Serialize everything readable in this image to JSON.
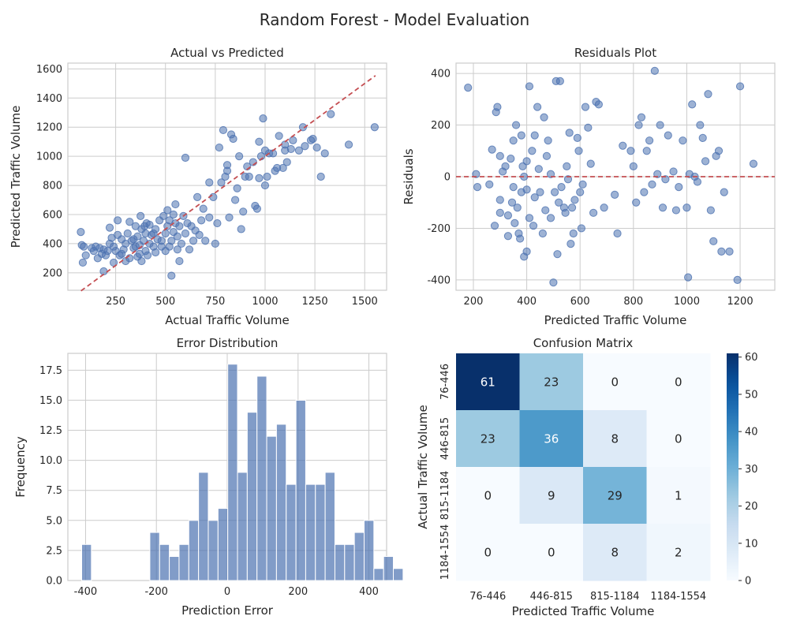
{
  "suptitle": "Random Forest - Model Evaluation",
  "colors": {
    "point": "#4c72b0",
    "ref_line": "#c44e52",
    "bar": "#4c72b0",
    "grid": "#cccccc"
  },
  "chart_data": [
    {
      "id": "scatter",
      "type": "scatter",
      "title": "Actual vs Predicted",
      "xlabel": "Actual Traffic Volume",
      "ylabel": "Predicted Traffic Volume",
      "xlim": [
        10,
        1610
      ],
      "ylim": [
        80,
        1640
      ],
      "xticks": [
        250,
        500,
        750,
        1000,
        1250,
        1500
      ],
      "yticks": [
        200,
        400,
        600,
        800,
        1000,
        1200,
        1400,
        1600
      ],
      "reference_line": {
        "from": [
          76,
          76
        ],
        "to": [
          1554,
          1554
        ],
        "style": "dashed"
      },
      "points": [
        [
          75,
          480
        ],
        [
          80,
          390
        ],
        [
          90,
          380
        ],
        [
          85,
          270
        ],
        [
          100,
          320
        ],
        [
          130,
          370
        ],
        [
          140,
          350
        ],
        [
          150,
          380
        ],
        [
          160,
          300
        ],
        [
          170,
          370
        ],
        [
          180,
          330
        ],
        [
          190,
          210
        ],
        [
          190,
          360
        ],
        [
          200,
          320
        ],
        [
          210,
          350
        ],
        [
          220,
          400
        ],
        [
          220,
          510
        ],
        [
          230,
          440
        ],
        [
          240,
          380
        ],
        [
          240,
          270
        ],
        [
          250,
          350
        ],
        [
          260,
          460
        ],
        [
          260,
          560
        ],
        [
          270,
          320
        ],
        [
          280,
          330
        ],
        [
          280,
          430
        ],
        [
          290,
          360
        ],
        [
          300,
          400
        ],
        [
          300,
          280
        ],
        [
          310,
          470
        ],
        [
          320,
          550
        ],
        [
          320,
          300
        ],
        [
          330,
          420
        ],
        [
          340,
          370
        ],
        [
          340,
          430
        ],
        [
          350,
          380
        ],
        [
          350,
          520
        ],
        [
          360,
          310
        ],
        [
          360,
          450
        ],
        [
          370,
          390
        ],
        [
          370,
          330
        ],
        [
          375,
          590
        ],
        [
          380,
          500
        ],
        [
          380,
          280
        ],
        [
          390,
          420
        ],
        [
          395,
          520
        ],
        [
          400,
          350
        ],
        [
          400,
          470
        ],
        [
          405,
          540
        ],
        [
          410,
          320
        ],
        [
          420,
          400
        ],
        [
          420,
          530
        ],
        [
          430,
          460
        ],
        [
          440,
          380
        ],
        [
          440,
          470
        ],
        [
          450,
          340
        ],
        [
          450,
          500
        ],
        [
          460,
          430
        ],
        [
          470,
          560
        ],
        [
          480,
          420
        ],
        [
          480,
          380
        ],
        [
          490,
          590
        ],
        [
          500,
          470
        ],
        [
          500,
          350
        ],
        [
          510,
          520
        ],
        [
          510,
          630
        ],
        [
          520,
          380
        ],
        [
          520,
          560
        ],
        [
          530,
          420
        ],
        [
          530,
          180
        ],
        [
          540,
          600
        ],
        [
          540,
          480
        ],
        [
          550,
          540
        ],
        [
          550,
          670
        ],
        [
          560,
          360
        ],
        [
          560,
          450
        ],
        [
          570,
          520
        ],
        [
          570,
          280
        ],
        [
          580,
          400
        ],
        [
          590,
          590
        ],
        [
          600,
          470
        ],
        [
          600,
          990
        ],
        [
          610,
          540
        ],
        [
          620,
          360
        ],
        [
          630,
          520
        ],
        [
          640,
          420
        ],
        [
          650,
          490
        ],
        [
          660,
          720
        ],
        [
          670,
          460
        ],
        [
          680,
          560
        ],
        [
          690,
          640
        ],
        [
          700,
          420
        ],
        [
          720,
          580
        ],
        [
          720,
          820
        ],
        [
          740,
          720
        ],
        [
          750,
          400
        ],
        [
          760,
          540
        ],
        [
          770,
          1060
        ],
        [
          780,
          820
        ],
        [
          790,
          1180
        ],
        [
          800,
          860
        ],
        [
          810,
          940
        ],
        [
          810,
          900
        ],
        [
          820,
          580
        ],
        [
          830,
          1150
        ],
        [
          840,
          1120
        ],
        [
          850,
          700
        ],
        [
          860,
          780
        ],
        [
          870,
          1000
        ],
        [
          880,
          500
        ],
        [
          890,
          620
        ],
        [
          900,
          860
        ],
        [
          910,
          930
        ],
        [
          920,
          860
        ],
        [
          940,
          960
        ],
        [
          950,
          660
        ],
        [
          960,
          640
        ],
        [
          970,
          1100
        ],
        [
          970,
          850
        ],
        [
          980,
          1000
        ],
        [
          990,
          1260
        ],
        [
          1000,
          1040
        ],
        [
          1000,
          800
        ],
        [
          1010,
          860
        ],
        [
          1020,
          1020
        ],
        [
          1040,
          1020
        ],
        [
          1050,
          900
        ],
        [
          1060,
          920
        ],
        [
          1070,
          1140
        ],
        [
          1090,
          920
        ],
        [
          1100,
          1040
        ],
        [
          1100,
          1080
        ],
        [
          1110,
          960
        ],
        [
          1130,
          1050
        ],
        [
          1140,
          1110
        ],
        [
          1170,
          1040
        ],
        [
          1190,
          1200
        ],
        [
          1200,
          1070
        ],
        [
          1230,
          1110
        ],
        [
          1240,
          1120
        ],
        [
          1260,
          1060
        ],
        [
          1280,
          860
        ],
        [
          1300,
          1020
        ],
        [
          1330,
          1290
        ],
        [
          1420,
          1080
        ],
        [
          1550,
          1200
        ]
      ]
    },
    {
      "id": "residuals",
      "type": "scatter",
      "title": "Residuals Plot",
      "xlabel": "Predicted Traffic Volume",
      "ylabel": "Residuals",
      "xlim": [
        135,
        1330
      ],
      "ylim": [
        -440,
        440
      ],
      "xticks": [
        200,
        400,
        600,
        800,
        1000,
        1200
      ],
      "yticks": [
        -400,
        -200,
        0,
        200,
        400
      ],
      "reference_line": {
        "y": 0,
        "style": "dashed"
      },
      "points": [
        [
          180,
          345
        ],
        [
          210,
          10
        ],
        [
          215,
          -40
        ],
        [
          260,
          -30
        ],
        [
          270,
          105
        ],
        [
          280,
          -190
        ],
        [
          285,
          250
        ],
        [
          290,
          270
        ],
        [
          300,
          80
        ],
        [
          300,
          -90
        ],
        [
          300,
          -140
        ],
        [
          310,
          20
        ],
        [
          320,
          40
        ],
        [
          330,
          -150
        ],
        [
          330,
          -230
        ],
        [
          340,
          70
        ],
        [
          345,
          -100
        ],
        [
          350,
          140
        ],
        [
          350,
          -40
        ],
        [
          355,
          -180
        ],
        [
          360,
          200
        ],
        [
          365,
          -120
        ],
        [
          370,
          -220
        ],
        [
          375,
          -240
        ],
        [
          380,
          160
        ],
        [
          380,
          -60
        ],
        [
          385,
          40
        ],
        [
          390,
          0
        ],
        [
          390,
          -310
        ],
        [
          400,
          -290
        ],
        [
          400,
          -50
        ],
        [
          400,
          60
        ],
        [
          410,
          350
        ],
        [
          410,
          -160
        ],
        [
          420,
          100
        ],
        [
          425,
          -190
        ],
        [
          430,
          -80
        ],
        [
          430,
          160
        ],
        [
          440,
          270
        ],
        [
          445,
          30
        ],
        [
          450,
          -60
        ],
        [
          460,
          -220
        ],
        [
          465,
          230
        ],
        [
          470,
          -130
        ],
        [
          475,
          80
        ],
        [
          480,
          140
        ],
        [
          490,
          -160
        ],
        [
          490,
          10
        ],
        [
          500,
          -410
        ],
        [
          505,
          -60
        ],
        [
          510,
          370
        ],
        [
          515,
          -300
        ],
        [
          520,
          -100
        ],
        [
          525,
          370
        ],
        [
          530,
          -40
        ],
        [
          540,
          -120
        ],
        [
          545,
          -140
        ],
        [
          550,
          40
        ],
        [
          555,
          -10
        ],
        [
          560,
          170
        ],
        [
          565,
          -260
        ],
        [
          570,
          -120
        ],
        [
          575,
          -220
        ],
        [
          580,
          -90
        ],
        [
          590,
          150
        ],
        [
          595,
          100
        ],
        [
          600,
          -60
        ],
        [
          605,
          -200
        ],
        [
          610,
          -30
        ],
        [
          620,
          270
        ],
        [
          630,
          190
        ],
        [
          640,
          50
        ],
        [
          650,
          -140
        ],
        [
          660,
          290
        ],
        [
          670,
          280
        ],
        [
          690,
          -120
        ],
        [
          730,
          -70
        ],
        [
          740,
          -220
        ],
        [
          760,
          120
        ],
        [
          790,
          100
        ],
        [
          800,
          40
        ],
        [
          810,
          -100
        ],
        [
          820,
          200
        ],
        [
          830,
          230
        ],
        [
          840,
          -60
        ],
        [
          850,
          100
        ],
        [
          860,
          140
        ],
        [
          870,
          -30
        ],
        [
          880,
          410
        ],
        [
          890,
          10
        ],
        [
          900,
          200
        ],
        [
          910,
          -120
        ],
        [
          920,
          -10
        ],
        [
          930,
          160
        ],
        [
          950,
          20
        ],
        [
          960,
          -130
        ],
        [
          970,
          -40
        ],
        [
          985,
          140
        ],
        [
          1000,
          -120
        ],
        [
          1005,
          -390
        ],
        [
          1010,
          10
        ],
        [
          1020,
          280
        ],
        [
          1030,
          0
        ],
        [
          1040,
          -20
        ],
        [
          1050,
          200
        ],
        [
          1060,
          150
        ],
        [
          1070,
          60
        ],
        [
          1080,
          320
        ],
        [
          1090,
          -130
        ],
        [
          1100,
          -250
        ],
        [
          1110,
          80
        ],
        [
          1120,
          100
        ],
        [
          1130,
          -290
        ],
        [
          1140,
          -60
        ],
        [
          1160,
          -290
        ],
        [
          1190,
          -400
        ],
        [
          1200,
          350
        ],
        [
          1250,
          50
        ]
      ]
    },
    {
      "id": "histogram",
      "type": "bar",
      "title": "Error Distribution",
      "xlabel": "Prediction Error",
      "ylabel": "Frequency",
      "xlim": [
        -450,
        450
      ],
      "ylim": [
        0,
        18.9
      ],
      "xticks": [
        -400,
        -200,
        0,
        200,
        400
      ],
      "yticks": [
        0.0,
        2.5,
        5.0,
        7.5,
        10.0,
        12.5,
        15.0,
        17.5
      ],
      "tick_labels_y": [
        "0.0",
        "2.5",
        "5.0",
        "7.5",
        "10.0",
        "12.5",
        "15.0",
        "17.5"
      ],
      "bin_start": -411,
      "bin_width": 27.5,
      "values": [
        3,
        0,
        0,
        0,
        0,
        0,
        0,
        4,
        3,
        2,
        3,
        5,
        9,
        5,
        6,
        18,
        9,
        14,
        17,
        12,
        13,
        8,
        15,
        8,
        8,
        9,
        3,
        3,
        4,
        5,
        1,
        2,
        1
      ]
    },
    {
      "id": "confusion",
      "type": "heatmap",
      "title": "Confusion Matrix",
      "xlabel": "Predicted Traffic Volume",
      "ylabel": "Actual Traffic Volume",
      "categories": [
        "76-446",
        "446-815",
        "815-1184",
        "1184-1554"
      ],
      "matrix": [
        [
          61,
          23,
          0,
          0
        ],
        [
          23,
          36,
          8,
          0
        ],
        [
          0,
          9,
          29,
          1
        ],
        [
          0,
          0,
          8,
          2
        ]
      ],
      "vmin": 0,
      "vmax": 61,
      "colorbar_ticks": [
        0,
        10,
        20,
        30,
        40,
        50,
        60
      ]
    }
  ]
}
